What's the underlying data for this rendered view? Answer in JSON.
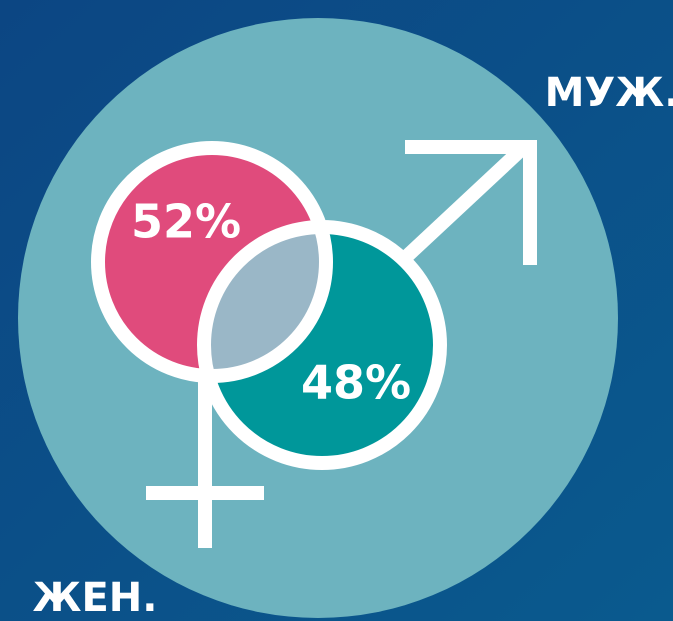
{
  "male": {
    "label": "МУЖ.",
    "share": "48%"
  },
  "female": {
    "label": "ЖЕН.",
    "share": "52%"
  }
}
